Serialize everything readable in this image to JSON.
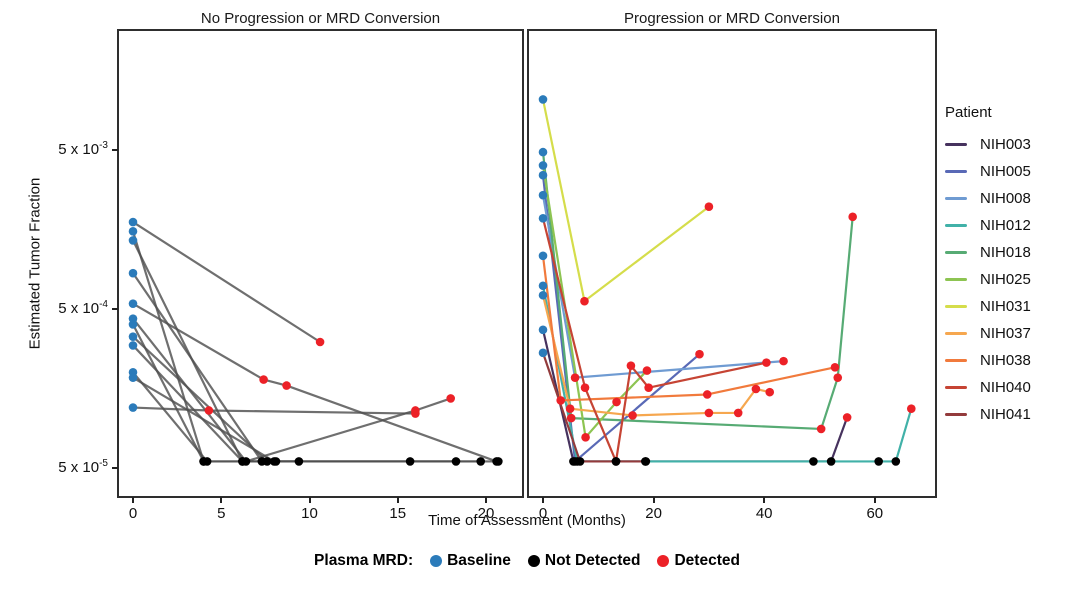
{
  "legend_patient": {
    "title": "Patient",
    "items": [
      {
        "id": "NIH003",
        "color": "#46325e"
      },
      {
        "id": "NIH005",
        "color": "#5969b6"
      },
      {
        "id": "NIH008",
        "color": "#6f9bd2"
      },
      {
        "id": "NIH012",
        "color": "#41b1a8"
      },
      {
        "id": "NIH018",
        "color": "#57ab74"
      },
      {
        "id": "NIH025",
        "color": "#8dc452"
      },
      {
        "id": "NIH031",
        "color": "#d5dd4b"
      },
      {
        "id": "NIH037",
        "color": "#f6a74f"
      },
      {
        "id": "NIH038",
        "color": "#f17a3c"
      },
      {
        "id": "NIH040",
        "color": "#c64434"
      },
      {
        "id": "NIH041",
        "color": "#933b3c"
      }
    ]
  },
  "legend_mrd": {
    "title": "Plasma MRD:",
    "items": [
      {
        "label": "Baseline",
        "status": "B",
        "color": "#2b7bba"
      },
      {
        "label": "Not Detected",
        "status": "N",
        "color": "#000000"
      },
      {
        "label": "Detected",
        "status": "D",
        "color": "#ec2127"
      }
    ]
  },
  "chart_data": {
    "type": "line",
    "x_axis": {
      "label": "Time of Assessment (Months)",
      "units": "months"
    },
    "y_axis": {
      "label": "Estimated Tumor Fraction",
      "scale": "log",
      "ticks": [
        {
          "base": "5 x 10",
          "exp": "-3",
          "value": 0.005
        },
        {
          "base": "5 x 10",
          "exp": "-4",
          "value": 0.0005
        },
        {
          "base": "5 x 10",
          "exp": "-5",
          "value": 5e-05
        }
      ],
      "floor_value": 5.5e-05
    },
    "status_colors": {
      "B": "#2b7bba",
      "N": "#000000",
      "D": "#ec2127"
    },
    "status_labels": {
      "B": "Baseline",
      "N": "Not Detected",
      "D": "Detected"
    },
    "panels": [
      {
        "title": "No Progression or MRD Conversion",
        "x_ticks": [
          0,
          5,
          10,
          15,
          20
        ],
        "x_range": [
          0,
          22
        ],
        "line_color": "#4f4f4f",
        "series": [
          {
            "patient": null,
            "points": [
              [
                0,
                0.00176,
                "B"
              ],
              [
                10.6,
                0.00031,
                "D"
              ]
            ]
          },
          {
            "patient": null,
            "points": [
              [
                0,
                0.00154,
                "B"
              ],
              [
                4.0,
                5.5e-05,
                "N"
              ]
            ]
          },
          {
            "patient": null,
            "points": [
              [
                0,
                0.00135,
                "B"
              ],
              [
                6.2,
                5.5e-05,
                "N"
              ]
            ]
          },
          {
            "patient": null,
            "points": [
              [
                0,
                0.00084,
                "B"
              ],
              [
                7.3,
                5.5e-05,
                "N"
              ]
            ]
          },
          {
            "patient": null,
            "points": [
              [
                0,
                0.00054,
                "B"
              ],
              [
                7.4,
                0.00018,
                "D"
              ],
              [
                8.7,
                0.000165,
                "D"
              ],
              [
                20.6,
                5.5e-05,
                "N"
              ]
            ]
          },
          {
            "patient": null,
            "points": [
              [
                0,
                0.000435,
                "B"
              ],
              [
                6.4,
                5.5e-05,
                "N"
              ],
              [
                16.0,
                0.000115,
                "D"
              ],
              [
                18.0,
                0.000137,
                "D"
              ]
            ]
          },
          {
            "patient": null,
            "points": [
              [
                0,
                0.0004,
                "B"
              ],
              [
                4.0,
                5.5e-05,
                "N"
              ],
              [
                15.7,
                5.5e-05,
                "N"
              ],
              [
                18.3,
                5.5e-05,
                "N"
              ]
            ]
          },
          {
            "patient": null,
            "points": [
              [
                0,
                0.000335,
                "B"
              ],
              [
                7.6,
                5.5e-05,
                "N"
              ],
              [
                19.7,
                5.5e-05,
                "N"
              ]
            ]
          },
          {
            "patient": null,
            "points": [
              [
                0,
                0.000295,
                "B"
              ],
              [
                6.2,
                5.5e-05,
                "N"
              ],
              [
                9.4,
                5.5e-05,
                "N"
              ]
            ]
          },
          {
            "patient": null,
            "points": [
              [
                0,
                0.0002,
                "B"
              ],
              [
                4.2,
                5.5e-05,
                "N"
              ],
              [
                8.1,
                5.5e-05,
                "N"
              ]
            ]
          },
          {
            "patient": null,
            "points": [
              [
                0,
                0.000185,
                "B"
              ],
              [
                8.0,
                5.5e-05,
                "N"
              ],
              [
                20.7,
                5.5e-05,
                "N"
              ]
            ]
          },
          {
            "patient": null,
            "points": [
              [
                0,
                0.00012,
                "B"
              ],
              [
                4.3,
                0.000115,
                "D"
              ],
              [
                16.0,
                0.00011,
                "D"
              ]
            ]
          }
        ]
      },
      {
        "title": "Progression or MRD Conversion",
        "x_ticks": [
          0,
          20,
          40,
          60
        ],
        "x_range": [
          0,
          70
        ],
        "line_color": null,
        "series": [
          {
            "patient": "NIH003",
            "points": [
              [
                0,
                0.00037,
                "B"
              ],
              [
                5.5,
                5.5e-05,
                "N"
              ],
              [
                52.1,
                5.5e-05,
                "N"
              ],
              [
                55.0,
                0.000104,
                "D"
              ]
            ]
          },
          {
            "patient": "NIH005",
            "points": [
              [
                0,
                0.00347,
                "B"
              ],
              [
                5.8,
                5.5e-05,
                "N"
              ],
              [
                28.3,
                0.00026,
                "D"
              ]
            ]
          },
          {
            "patient": "NIH008",
            "points": [
              [
                0,
                0.0026,
                "B"
              ],
              [
                5.8,
                0.000185,
                "D"
              ],
              [
                43.5,
                0.000235,
                "D"
              ]
            ]
          },
          {
            "patient": "NIH012",
            "points": [
              [
                0,
                0.0007,
                "B"
              ],
              [
                6.2,
                5.5e-05,
                "N"
              ],
              [
                18.5,
                5.5e-05,
                "N"
              ],
              [
                48.9,
                5.5e-05,
                "N"
              ],
              [
                60.7,
                5.5e-05,
                "N"
              ],
              [
                63.8,
                5.5e-05,
                "N"
              ],
              [
                66.6,
                0.000118,
                "D"
              ]
            ]
          },
          {
            "patient": "NIH018",
            "points": [
              [
                0,
                0.00485,
                "B"
              ],
              [
                5.1,
                0.000103,
                "D"
              ],
              [
                50.3,
                8.8e-05,
                "D"
              ],
              [
                53.3,
                0.000185,
                "D"
              ],
              [
                56.0,
                0.0019,
                "D"
              ]
            ]
          },
          {
            "patient": "NIH025",
            "points": [
              [
                0,
                0.004,
                "B"
              ],
              [
                7.7,
                7.8e-05,
                "D"
              ],
              [
                13.3,
                0.00013,
                "D"
              ],
              [
                18.8,
                0.000205,
                "D"
              ]
            ]
          },
          {
            "patient": "NIH031",
            "points": [
              [
                0,
                0.0104,
                "B"
              ],
              [
                7.5,
                0.00056,
                "D"
              ],
              [
                30.0,
                0.0022,
                "D"
              ]
            ]
          },
          {
            "patient": "NIH037",
            "points": [
              [
                0,
                0.00061,
                "B"
              ],
              [
                4.9,
                0.000118,
                "D"
              ],
              [
                16.2,
                0.000107,
                "D"
              ],
              [
                30.0,
                0.000111,
                "D"
              ],
              [
                35.3,
                0.000111,
                "D"
              ],
              [
                38.5,
                0.000157,
                "D"
              ],
              [
                41.0,
                0.00015,
                "D"
              ]
            ]
          },
          {
            "patient": "NIH038",
            "points": [
              [
                0,
                0.00108,
                "B"
              ],
              [
                3.2,
                0.000133,
                "D"
              ],
              [
                29.7,
                0.000145,
                "D"
              ],
              [
                52.8,
                0.000215,
                "D"
              ]
            ]
          },
          {
            "patient": "NIH040",
            "points": [
              [
                0,
                0.00186,
                "B"
              ],
              [
                7.6,
                0.00016,
                "D"
              ],
              [
                13.2,
                5.5e-05,
                "N"
              ],
              [
                15.9,
                0.00022,
                "D"
              ],
              [
                19.1,
                0.00016,
                "D"
              ],
              [
                40.4,
                0.00023,
                "D"
              ]
            ]
          },
          {
            "patient": "NIH041",
            "points": [
              [
                0,
                0.000265,
                "B"
              ],
              [
                6.7,
                5.5e-05,
                "N"
              ],
              [
                13.2,
                5.5e-05,
                "N"
              ],
              [
                18.6,
                5.5e-05,
                "N"
              ]
            ]
          }
        ]
      }
    ]
  }
}
